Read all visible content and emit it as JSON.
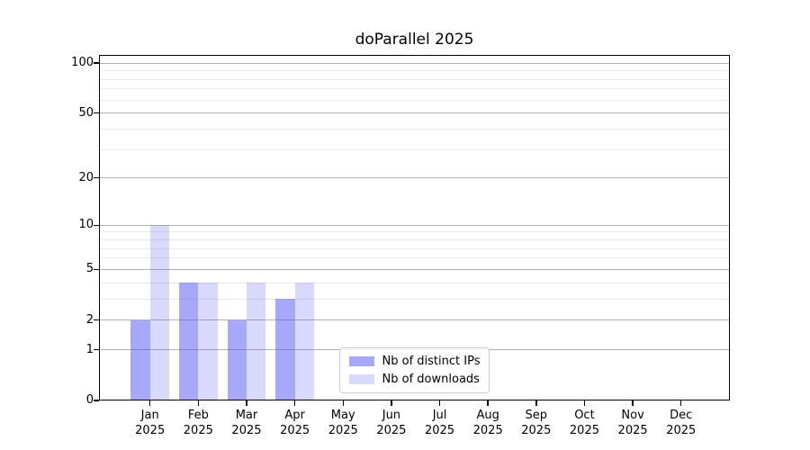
{
  "figure": {
    "background": "#ffffff",
    "text_color": "#000000"
  },
  "chart_data": {
    "type": "bar",
    "title": "doParallel 2025",
    "categories": [
      "Jan",
      "Feb",
      "Mar",
      "Apr",
      "May",
      "Jun",
      "Jul",
      "Aug",
      "Sep",
      "Oct",
      "Nov",
      "Dec"
    ],
    "x_year_label": "2025",
    "series": [
      {
        "name": "Nb of distinct IPs",
        "color": "rgba(82,82,245,0.50)",
        "values": [
          2,
          4,
          2,
          3,
          0,
          0,
          0,
          0,
          0,
          0,
          0,
          0
        ]
      },
      {
        "name": "Nb of downloads",
        "color": "rgba(82,82,245,0.22)",
        "values": [
          10,
          4,
          4,
          4,
          0,
          0,
          0,
          0,
          0,
          0,
          0,
          0
        ]
      }
    ],
    "xlabel": "",
    "ylabel": "",
    "yscale": "log1p",
    "ylim": [
      0,
      112
    ],
    "yticks_major": [
      0,
      1,
      2,
      5,
      10,
      20,
      50,
      100
    ],
    "yticks_minor": [
      3,
      4,
      6,
      7,
      8,
      9,
      30,
      40,
      60,
      70,
      80,
      90
    ],
    "grid": "both",
    "grid_major_color": "#b2b2b2",
    "grid_minor_color": "#eaeaea",
    "legend_position": "lower center"
  }
}
